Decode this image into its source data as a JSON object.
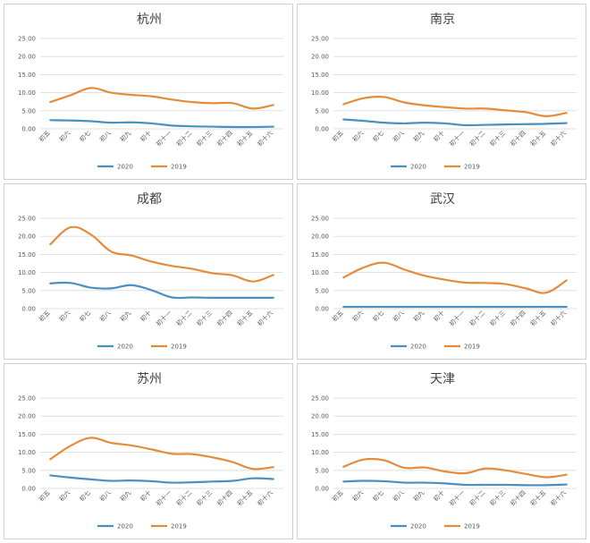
{
  "colors": {
    "s2020": "#4a90c2",
    "s2019": "#e58c3a"
  },
  "chart_data": [
    {
      "type": "line",
      "title": "杭州",
      "categories": [
        "初五",
        "初六",
        "初七",
        "初八",
        "初九",
        "初十",
        "初十一",
        "初十二",
        "初十三",
        "初十四",
        "初十五",
        "初十六"
      ],
      "ylim": [
        0,
        25
      ],
      "yticks": [
        "0.00",
        "5.00",
        "10.00",
        "15.00",
        "20.00",
        "25.00"
      ],
      "series": [
        {
          "name": "2020",
          "values": [
            2.4,
            2.3,
            2.1,
            1.7,
            1.8,
            1.5,
            0.9,
            0.7,
            0.6,
            0.5,
            0.5,
            0.6
          ]
        },
        {
          "name": "2019",
          "values": [
            7.4,
            9.3,
            11.3,
            10.0,
            9.4,
            9.0,
            8.1,
            7.4,
            7.1,
            7.1,
            5.6,
            6.6
          ]
        }
      ],
      "legend": "bottom"
    },
    {
      "type": "line",
      "title": "南京",
      "categories": [
        "初五",
        "初六",
        "初七",
        "初八",
        "初九",
        "初十",
        "初十一",
        "初十二",
        "初十三",
        "初十四",
        "初十五",
        "初十六"
      ],
      "ylim": [
        0,
        25
      ],
      "yticks": [
        "0.00",
        "5.00",
        "10.00",
        "15.00",
        "20.00",
        "25.00"
      ],
      "series": [
        {
          "name": "2020",
          "values": [
            2.6,
            2.2,
            1.7,
            1.5,
            1.7,
            1.5,
            1.0,
            1.1,
            1.2,
            1.3,
            1.4,
            1.6
          ]
        },
        {
          "name": "2019",
          "values": [
            6.8,
            8.5,
            8.8,
            7.3,
            6.5,
            6.0,
            5.6,
            5.6,
            5.1,
            4.6,
            3.5,
            4.4
          ]
        }
      ],
      "legend": "bottom"
    },
    {
      "type": "line",
      "title": "成都",
      "categories": [
        "初五",
        "初六",
        "初七",
        "初八",
        "初九",
        "初十",
        "初十一",
        "初十二",
        "初十三",
        "初十四",
        "初十五",
        "初十六"
      ],
      "ylim": [
        0,
        25
      ],
      "yticks": [
        "0.00",
        "5.00",
        "10.00",
        "15.00",
        "20.00",
        "25.00"
      ],
      "series": [
        {
          "name": "2020",
          "values": [
            7.0,
            7.1,
            5.8,
            5.6,
            6.5,
            5.1,
            3.1,
            3.1,
            3.0,
            3.0,
            3.0,
            3.0
          ]
        },
        {
          "name": "2019",
          "values": [
            17.8,
            22.5,
            20.5,
            15.8,
            14.7,
            13.0,
            11.8,
            11.0,
            9.8,
            9.2,
            7.5,
            9.3
          ]
        }
      ],
      "legend": "bottom"
    },
    {
      "type": "line",
      "title": "武汉",
      "categories": [
        "初五",
        "初六",
        "初七",
        "初八",
        "初九",
        "初十",
        "初十一",
        "初十二",
        "初十三",
        "初十四",
        "初十五",
        "初十六"
      ],
      "ylim": [
        0,
        25
      ],
      "yticks": [
        "0.00",
        "5.00",
        "10.00",
        "15.00",
        "20.00",
        "25.00"
      ],
      "series": [
        {
          "name": "2020",
          "values": [
            0.5,
            0.5,
            0.5,
            0.5,
            0.5,
            0.5,
            0.5,
            0.5,
            0.5,
            0.5,
            0.5,
            0.5
          ]
        },
        {
          "name": "2019",
          "values": [
            8.6,
            11.4,
            12.7,
            10.8,
            9.1,
            8.0,
            7.2,
            7.1,
            6.8,
            5.6,
            4.4,
            7.8
          ]
        }
      ],
      "legend": "bottom"
    },
    {
      "type": "line",
      "title": "苏州",
      "categories": [
        "初五",
        "初六",
        "初七",
        "初八",
        "初九",
        "初十",
        "初十一",
        "初十二",
        "初十三",
        "初十四",
        "初十五",
        "初十六"
      ],
      "ylim": [
        0,
        25
      ],
      "yticks": [
        "0.00",
        "5.00",
        "10.00",
        "15.00",
        "20.00",
        "25.00"
      ],
      "series": [
        {
          "name": "2020",
          "values": [
            3.6,
            3.0,
            2.5,
            2.1,
            2.2,
            2.0,
            1.6,
            1.7,
            1.9,
            2.1,
            2.8,
            2.6
          ]
        },
        {
          "name": "2019",
          "values": [
            8.1,
            11.8,
            14.0,
            12.6,
            11.9,
            10.8,
            9.6,
            9.5,
            8.6,
            7.3,
            5.4,
            5.9
          ]
        }
      ],
      "legend": "bottom"
    },
    {
      "type": "line",
      "title": "天津",
      "categories": [
        "初五",
        "初六",
        "初七",
        "初八",
        "初九",
        "初十",
        "初十一",
        "初十二",
        "初十三",
        "初十四",
        "初十五",
        "初十六"
      ],
      "ylim": [
        0,
        25
      ],
      "yticks": [
        "0.00",
        "5.00",
        "10.00",
        "15.00",
        "20.00",
        "25.00"
      ],
      "series": [
        {
          "name": "2020",
          "values": [
            1.9,
            2.1,
            2.0,
            1.6,
            1.6,
            1.4,
            1.0,
            1.0,
            1.0,
            0.9,
            0.9,
            1.1
          ]
        },
        {
          "name": "2019",
          "values": [
            6.0,
            8.0,
            7.8,
            5.7,
            5.8,
            4.7,
            4.2,
            5.5,
            5.0,
            4.0,
            3.1,
            3.8
          ]
        }
      ],
      "legend": "bottom"
    }
  ]
}
